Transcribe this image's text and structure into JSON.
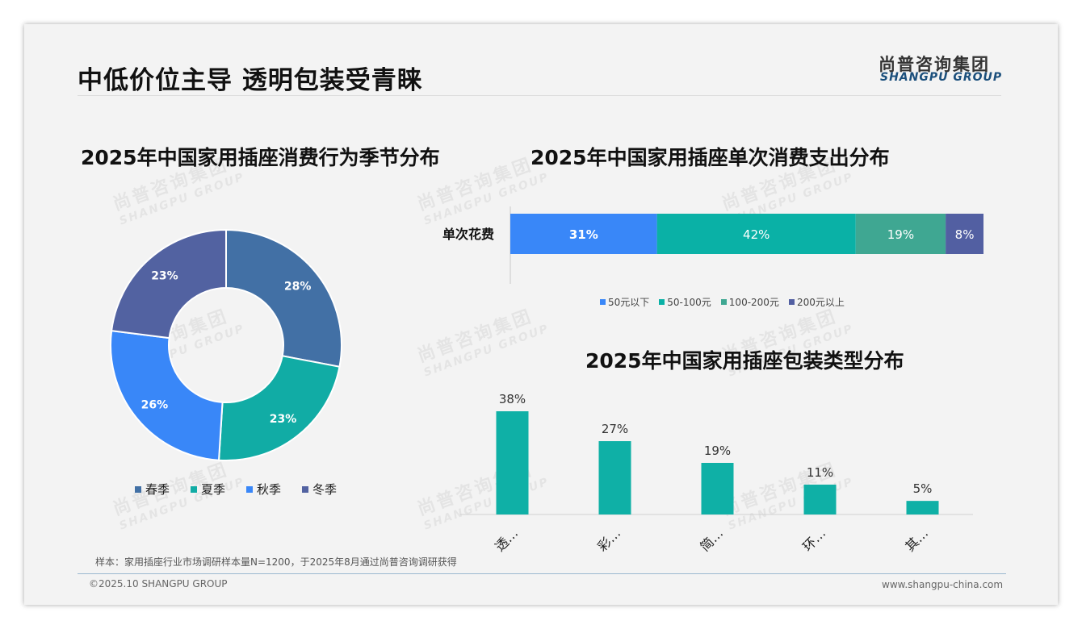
{
  "header": {
    "title": "中低价位主导 透明包装受青睐",
    "logo_cn": "尚普咨询集团",
    "logo_en": "SHANGPU GROUP"
  },
  "watermark": {
    "cn": "尚普咨询集团",
    "en": "SHANGPU GROUP"
  },
  "colors": {
    "spring": "#4270a5",
    "summer": "#11aca5",
    "autumn": "#3987f8",
    "winter": "#5262a1",
    "under50": "#3987f8",
    "r50_100": "#0ab1a6",
    "r100_200": "#3fa792",
    "over200": "#525fa2",
    "pack_bar": "#0fb0a6"
  },
  "chart_data": [
    {
      "type": "pie",
      "variant": "donut",
      "title": "2025年中国家用插座消费行为季节分布",
      "categories": [
        "春季",
        "夏季",
        "秋季",
        "冬季"
      ],
      "values": [
        28,
        23,
        26,
        23
      ],
      "labels": [
        "28%",
        "23%",
        "26%",
        "23%"
      ],
      "legend": "bottom"
    },
    {
      "type": "bar",
      "variant": "stacked-horizontal-100",
      "title": "2025年中国家用插座单次消费支出分布",
      "categories": [
        "单次花费"
      ],
      "series": [
        {
          "name": "50元以下",
          "values": [
            31
          ],
          "label": "31%"
        },
        {
          "name": "50-100元",
          "values": [
            42
          ],
          "label": "42%"
        },
        {
          "name": "100-200元",
          "values": [
            19
          ],
          "label": "19%"
        },
        {
          "name": "200元以上",
          "values": [
            8
          ],
          "label": "8%"
        }
      ],
      "legend": "bottom"
    },
    {
      "type": "bar",
      "title": "2025年中国家用插座包装类型分布",
      "categories": [
        "透…",
        "彩…",
        "简…",
        "环…",
        "其…"
      ],
      "values": [
        38,
        27,
        19,
        11,
        5
      ],
      "labels": [
        "38%",
        "27%",
        "19%",
        "11%",
        "5%"
      ],
      "ylim": [
        0,
        38
      ],
      "grid": false
    }
  ],
  "footer": {
    "note": "样本：家用插座行业市场调研样本量N=1200，于2025年8月通过尚普咨询调研获得",
    "copyright": "©2025.10 SHANGPU GROUP",
    "site": "www.shangpu-china.com"
  }
}
